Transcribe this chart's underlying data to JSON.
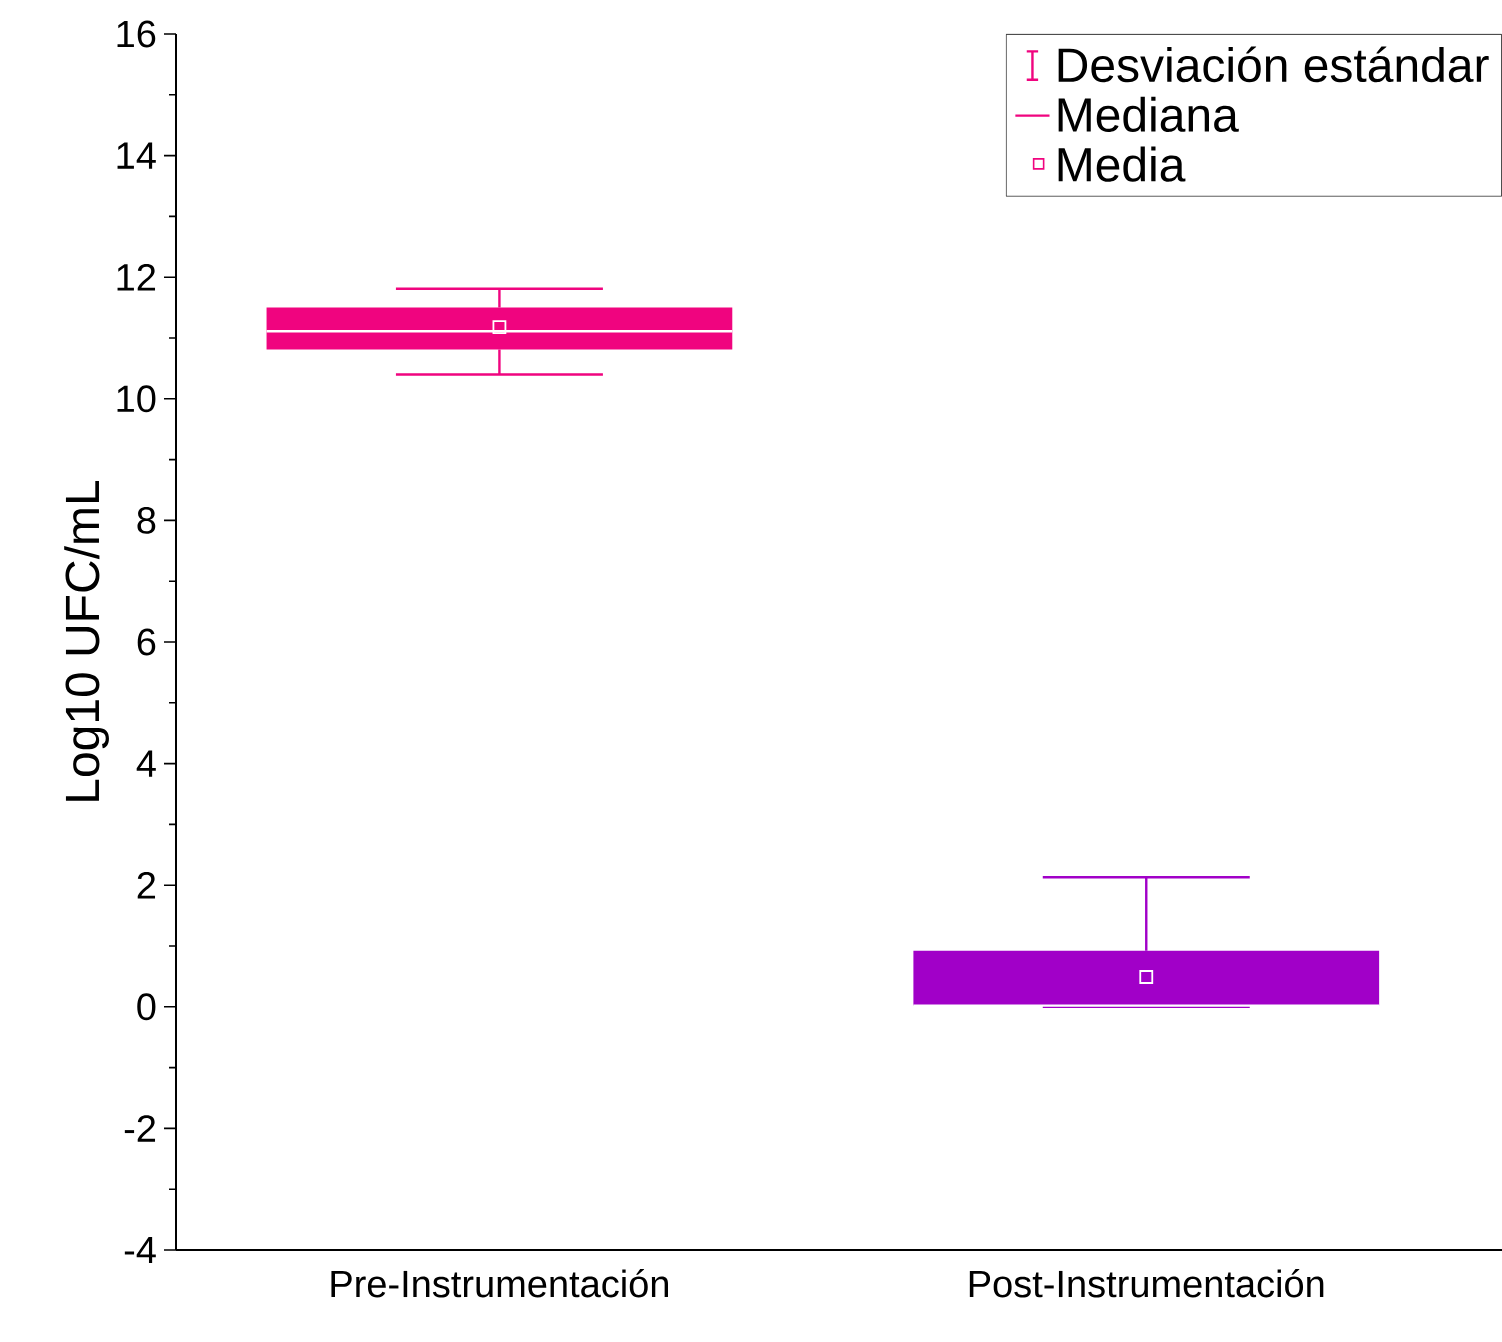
{
  "chart_data": {
    "type": "box",
    "ylabel": "Log10 UFC/mL",
    "categories": [
      "Pre-Instrumentación",
      "Post-Instrumentación"
    ],
    "boxes": [
      {
        "low": 10.4,
        "q1": 10.81,
        "median": 11.11,
        "q3": 11.5,
        "high": 11.81,
        "mean": 11.18
      },
      {
        "low": 0,
        "q1": 0.02,
        "median": 0.02,
        "q3": 0.92,
        "high": 2.13,
        "mean": 0.49
      }
    ],
    "colors": [
      "#f0047f",
      "#a100c8"
    ],
    "ylim": [
      -4,
      16
    ],
    "yticks": [
      -4,
      -2,
      0,
      2,
      4,
      6,
      8,
      10,
      12,
      14,
      16
    ],
    "annotations": [
      "Desviación estándar",
      "Mediana",
      "Media"
    ]
  }
}
